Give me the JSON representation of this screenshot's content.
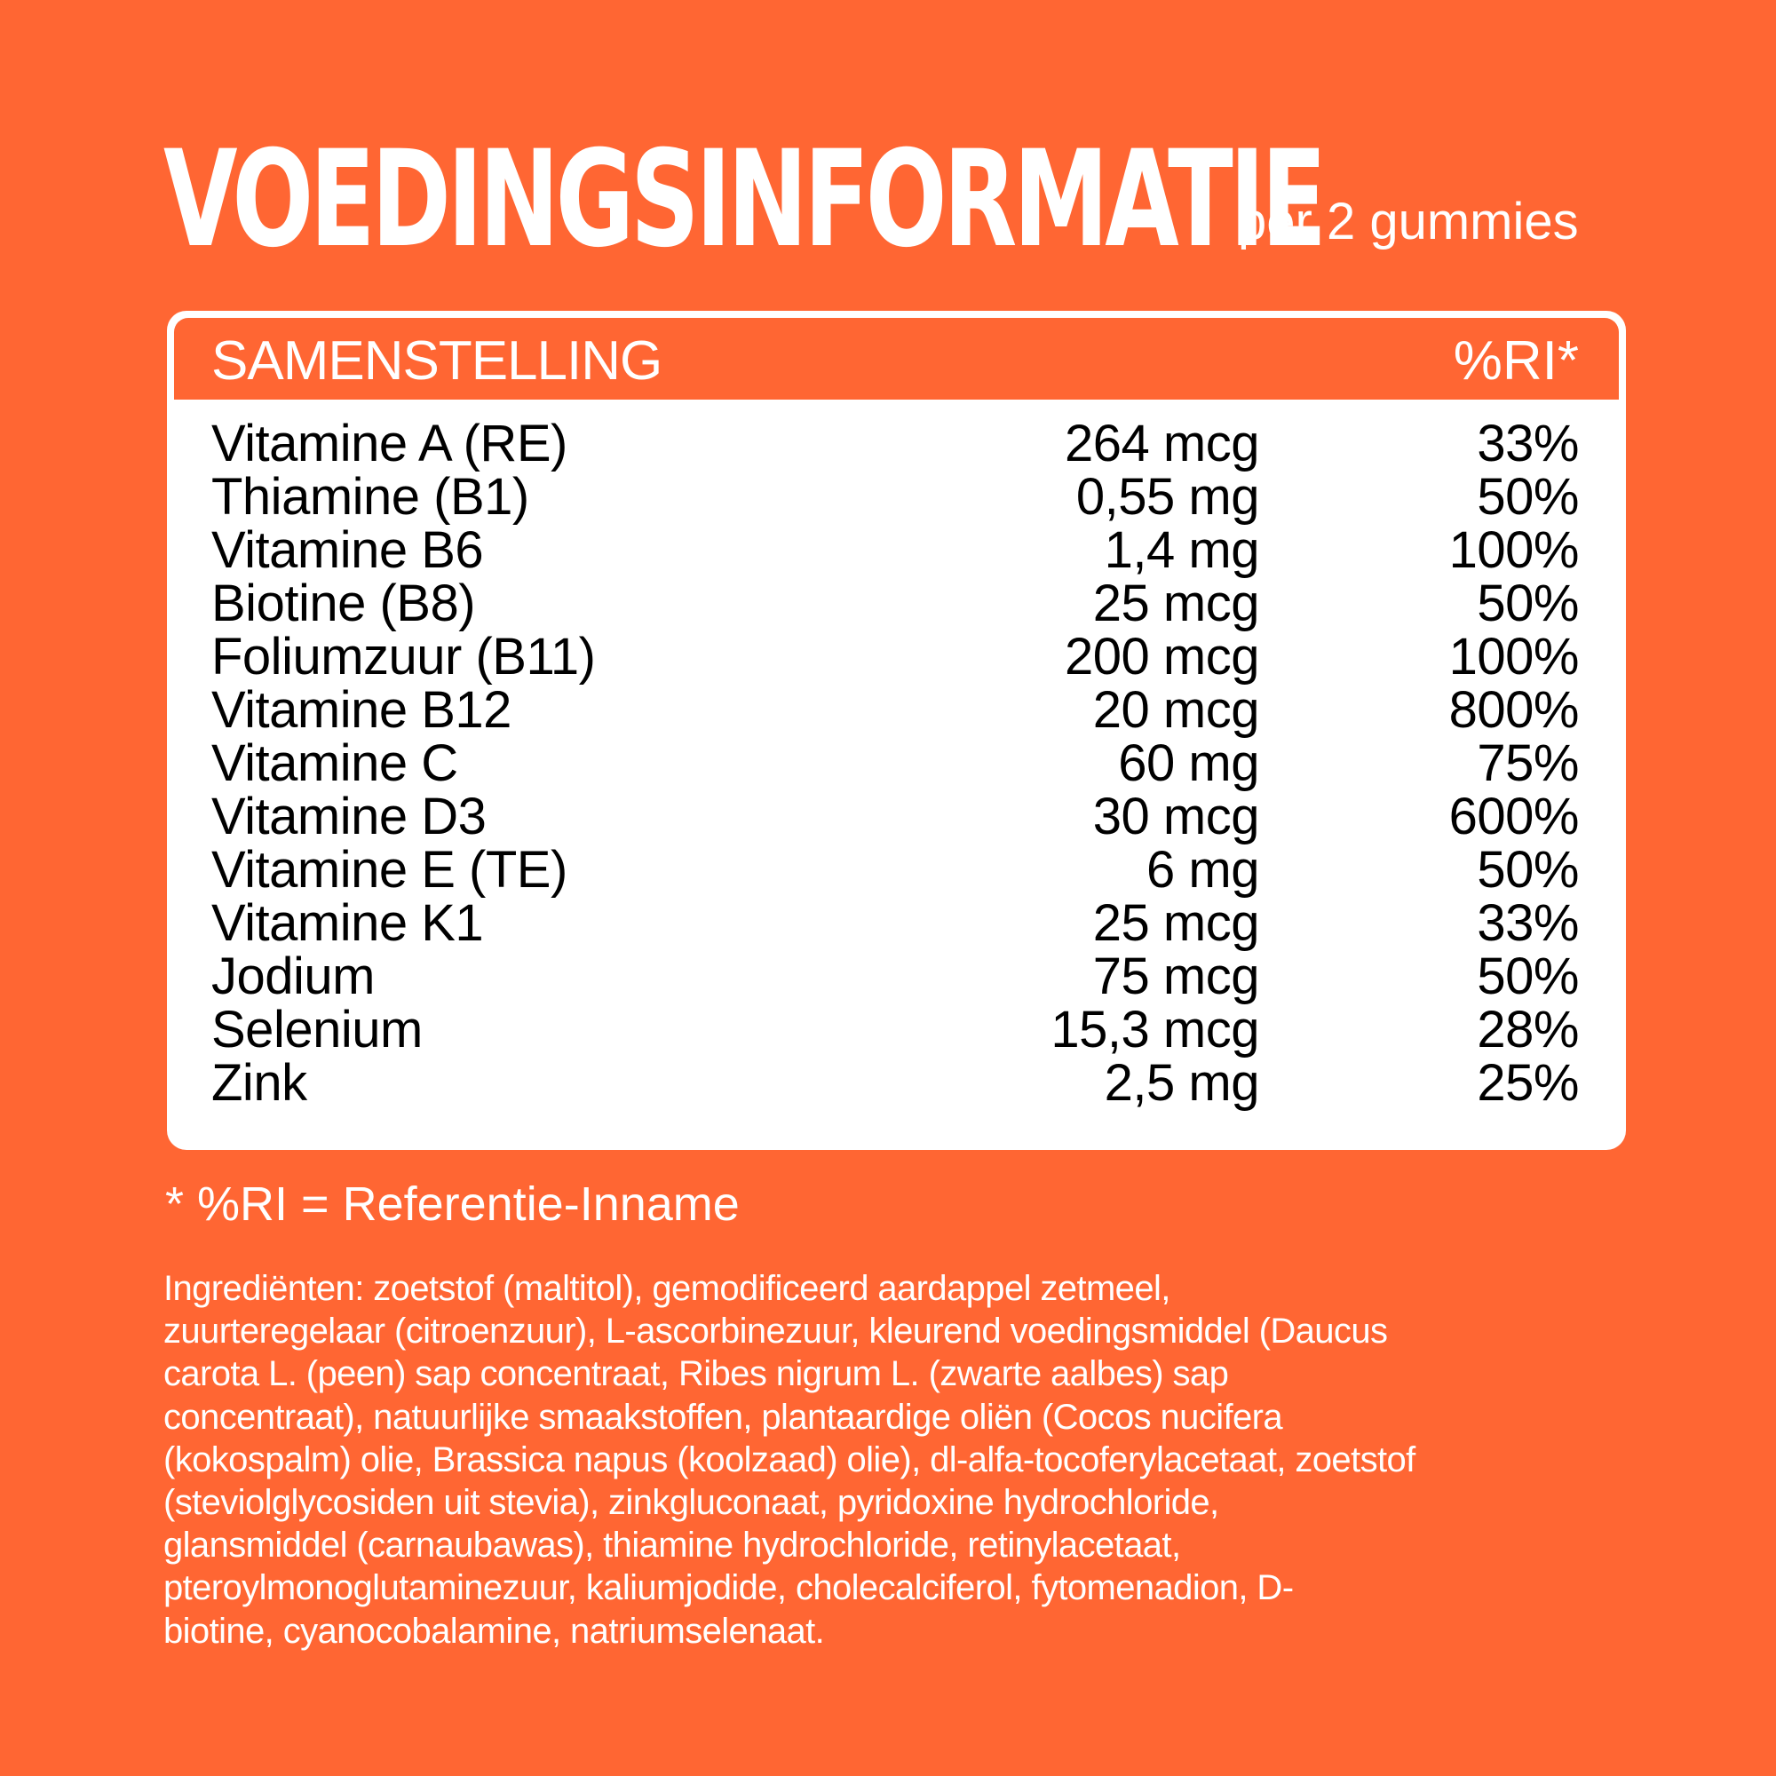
{
  "header": {
    "title": "VOEDINGSINFORMATIE",
    "subtitle": "per 2 gummies"
  },
  "table": {
    "column_headers": {
      "composition": "SAMENSTELLING",
      "ri": "%RI*"
    },
    "rows": [
      {
        "name": "Vitamine A (RE)",
        "amount": "264 mcg",
        "ri": "33%"
      },
      {
        "name": "Thiamine (B1)",
        "amount": "0,55 mg",
        "ri": "50%"
      },
      {
        "name": "Vitamine B6",
        "amount": "1,4 mg",
        "ri": "100%"
      },
      {
        "name": "Biotine (B8)",
        "amount": "25 mcg",
        "ri": "50%"
      },
      {
        "name": "Foliumzuur (B11)",
        "amount": "200 mcg",
        "ri": "100%"
      },
      {
        "name": "Vitamine B12",
        "amount": "20 mcg",
        "ri": "800%"
      },
      {
        "name": "Vitamine C",
        "amount": "60 mg",
        "ri": "75%"
      },
      {
        "name": "Vitamine D3",
        "amount": "30 mcg",
        "ri": "600%"
      },
      {
        "name": "Vitamine E (TE)",
        "amount": "6 mg",
        "ri": "50%"
      },
      {
        "name": "Vitamine K1",
        "amount": "25 mcg",
        "ri": "33%"
      },
      {
        "name": "Jodium",
        "amount": "75 mcg",
        "ri": "50%"
      },
      {
        "name": "Selenium",
        "amount": "15,3 mcg",
        "ri": "28%"
      },
      {
        "name": "Zink",
        "amount": "2,5 mg",
        "ri": "25%"
      }
    ]
  },
  "footnote": "* %RI = Referentie-Inname",
  "ingredients": {
    "lines": [
      "Ingrediënten: zoetstof (maltitol), gemodificeerd aardappel zetmeel,",
      "zuurteregelaar (citroenzuur), L-ascorbinezuur, kleurend voedingsmiddel (Daucus",
      "carota L. (peen) sap concentraat, Ribes nigrum L. (zwarte aalbes) sap",
      "concentraat), natuurlijke smaakstoffen, plantaardige oliën (Cocos nucifera",
      "(kokospalm) olie, Brassica napus (koolzaad) olie), dl-alfa-tocoferylacetaat, zoetstof",
      "(steviolglycosiden uit stevia), zinkgluconaat, pyridoxine hydrochloride,",
      "glansmiddel (carnaubawas), thiamine hydrochloride, retinylacetaat,",
      "pteroylmonoglutaminezuur, kaliumjodide, cholecalciferol, fytomenadion, D-",
      "biotine, cyanocobalamine, natriumselenaat."
    ]
  },
  "colors": {
    "background": "#FF6633",
    "card": "#FFFFFF",
    "text_dark": "#000000",
    "text_light": "#FFFFFF"
  }
}
